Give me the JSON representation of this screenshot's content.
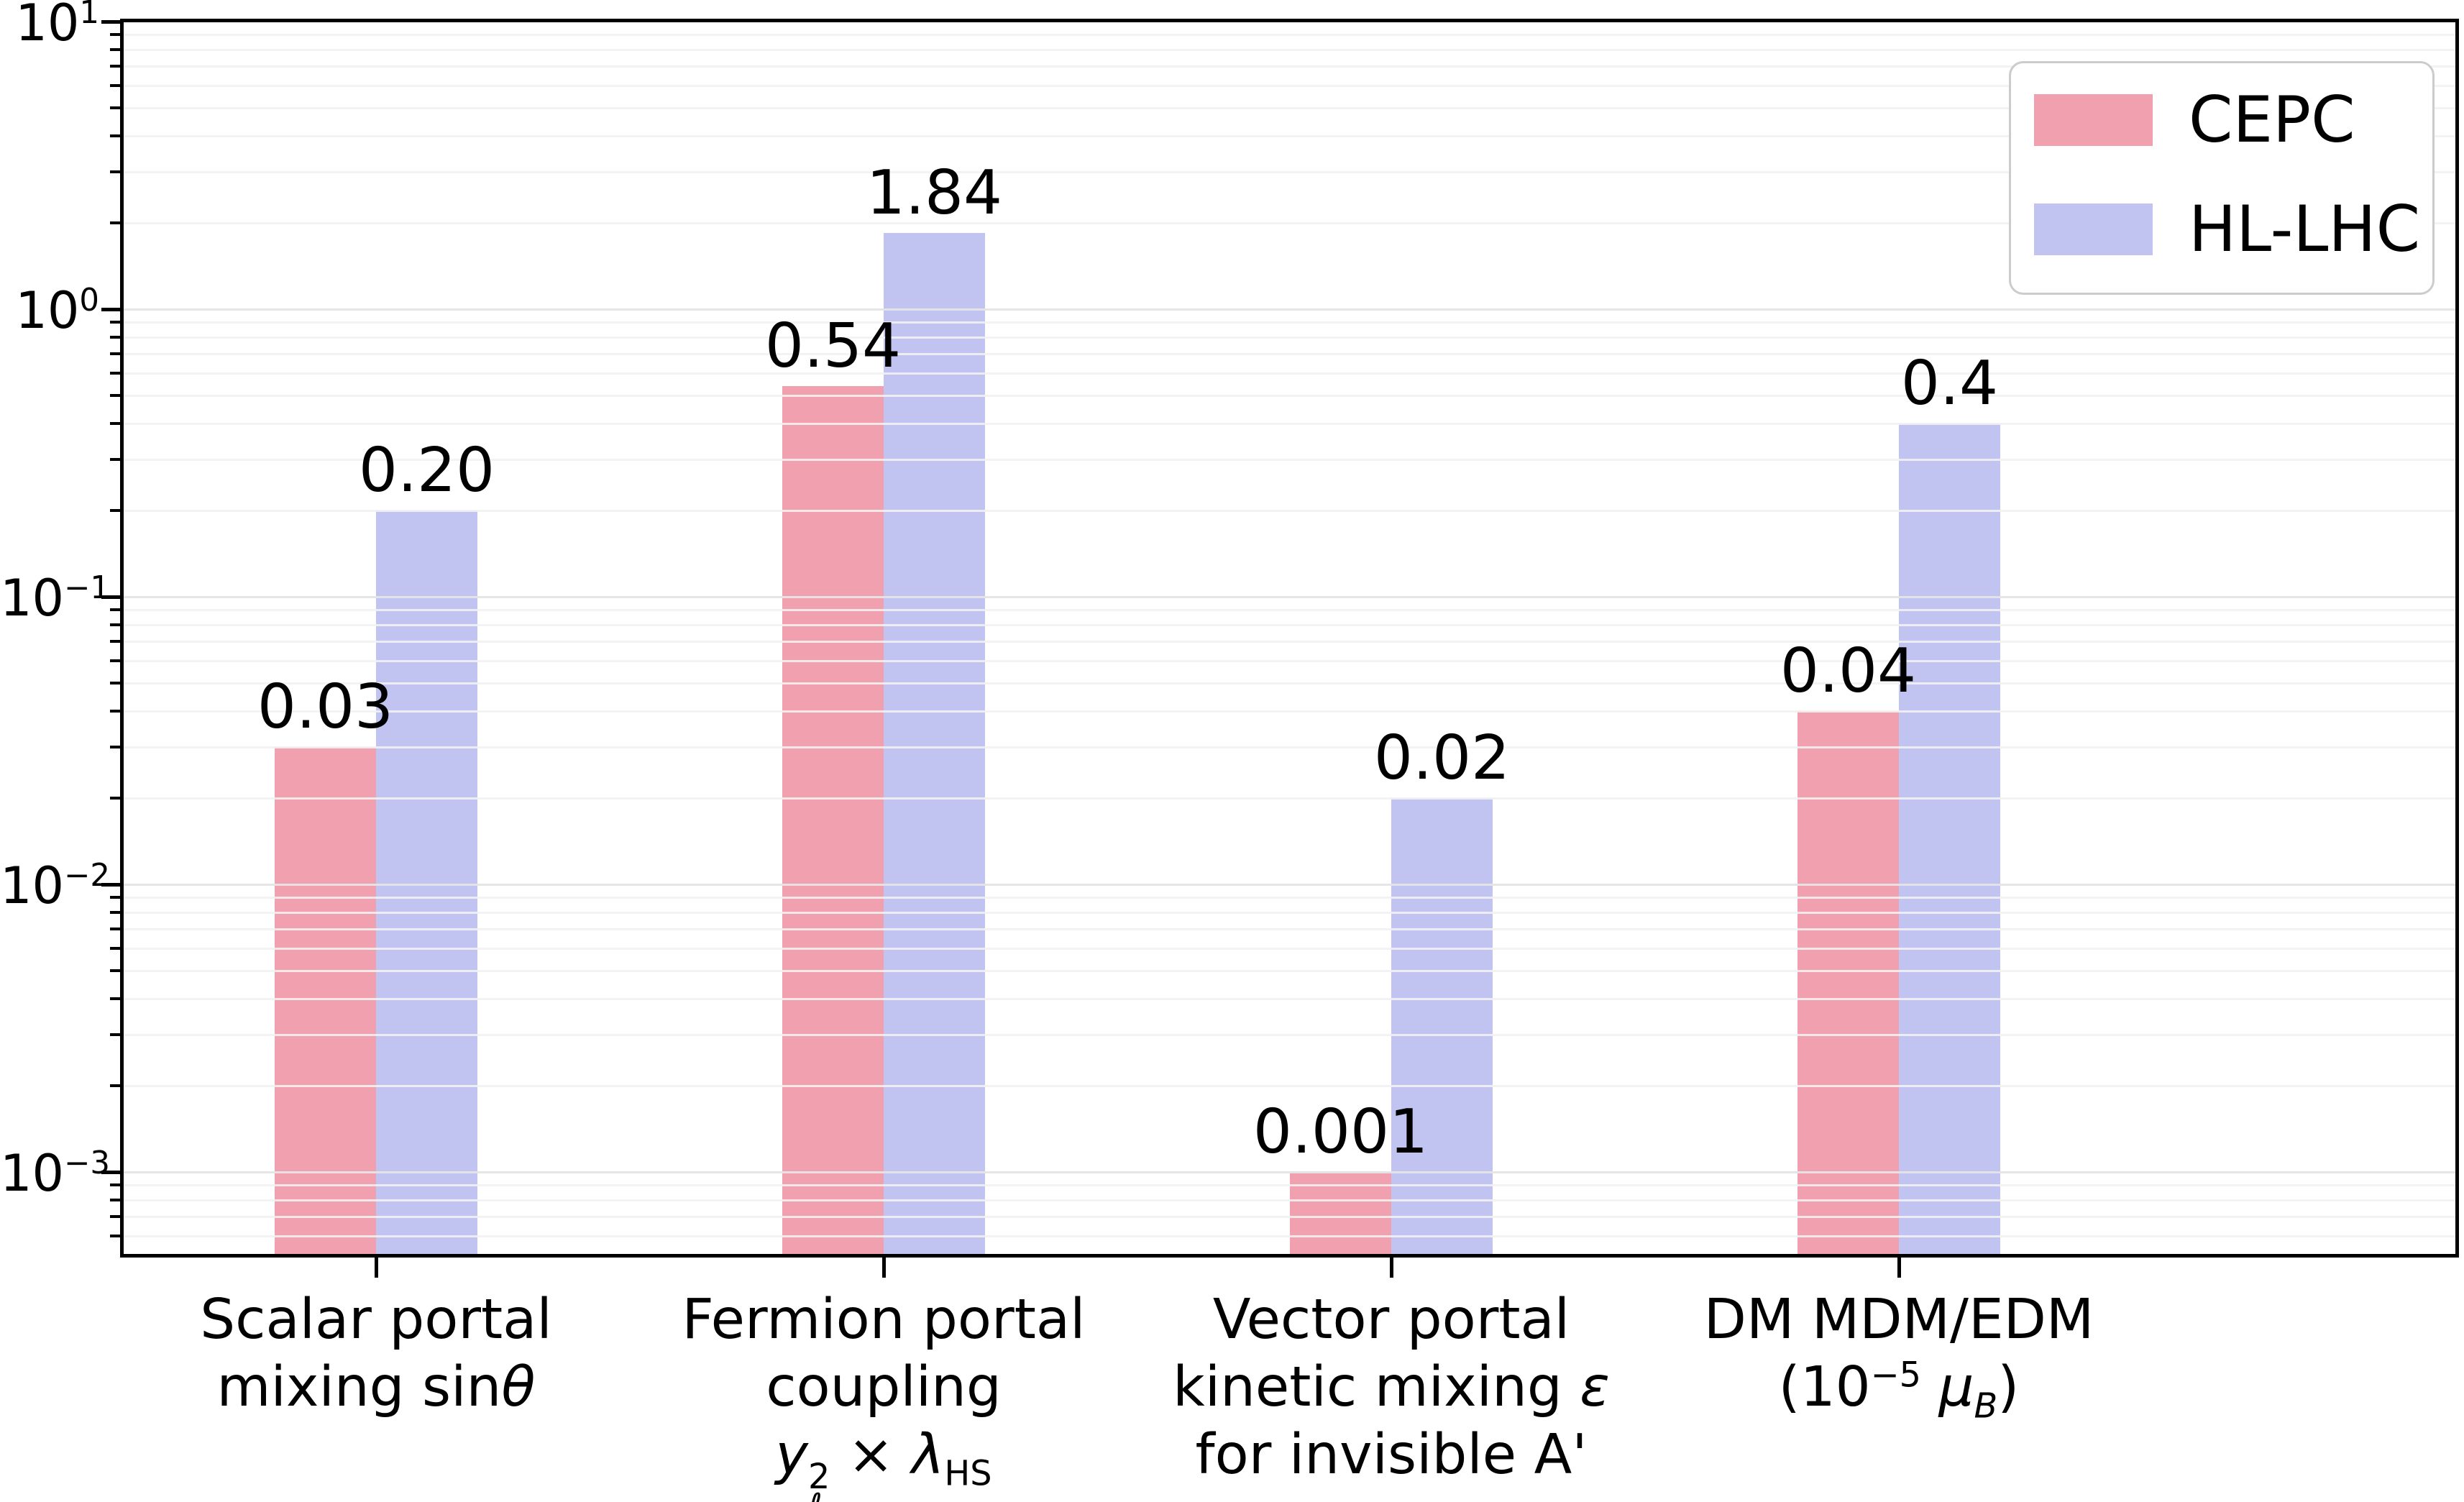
{
  "chart_data": {
    "type": "bar",
    "title": "",
    "xlabel": "",
    "ylabel": "",
    "yscale": "log",
    "ylim": [
      0.0005,
      10
    ],
    "grid": {
      "major": true,
      "minor": true,
      "axisbelow": false
    },
    "categories": [
      {
        "label_lines": [
          "Scalar portal",
          "mixing sin*θ*"
        ]
      },
      {
        "label_lines": [
          "Fermion portal",
          "coupling",
          "*y*_{ℓ}^{2} × *λ*_{HS}"
        ]
      },
      {
        "label_lines": [
          "Vector portal",
          "kinetic mixing *ε*",
          "for invisible A'"
        ]
      },
      {
        "label_lines": [
          "DM MDM/EDM",
          "(10^{−5} *μ*_{*B*})"
        ]
      }
    ],
    "series": [
      {
        "name": "CEPC",
        "color": "#f0a0ae",
        "values": [
          0.03,
          0.54,
          0.001,
          0.04
        ],
        "value_labels": [
          "0.03",
          "0.54",
          "0.001",
          "0.04"
        ]
      },
      {
        "name": "HL-LHC",
        "color": "#c1c4f1",
        "values": [
          0.2,
          1.84,
          0.02,
          0.4
        ],
        "value_labels": [
          "0.20",
          "1.84",
          "0.02",
          "0.4"
        ]
      }
    ],
    "y_axis": {
      "tick_values": [
        10,
        1,
        0.1,
        0.01,
        0.001
      ],
      "tick_labels": [
        "10^{1}",
        "10^{0}",
        "10^{−1}",
        "10^{−2}",
        "10^{−3}"
      ]
    },
    "legend": {
      "position": "upper right",
      "items": [
        "CEPC",
        "HL-LHC"
      ]
    }
  }
}
